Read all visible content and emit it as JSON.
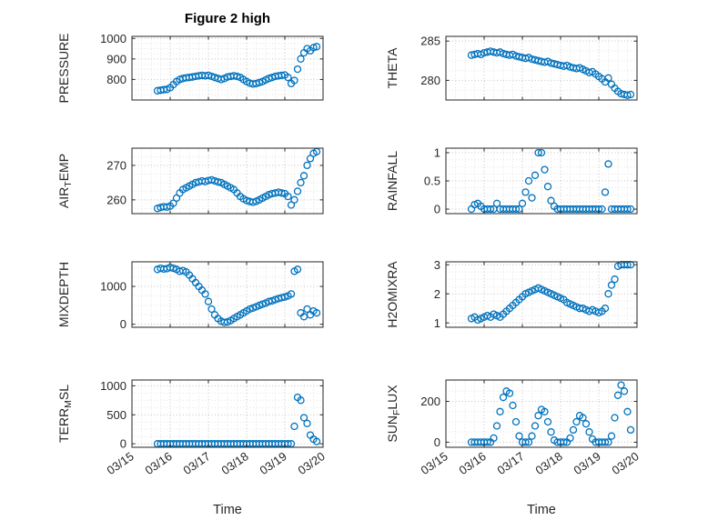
{
  "chart_data": {
    "type": "scatter",
    "title": "Figure 2 high",
    "xlabel": "Time",
    "marker": {
      "shape": "circle-open",
      "color": "#0072BD"
    },
    "axis_color": "#262626",
    "xlim": [
      15,
      20
    ],
    "xticks": [
      15,
      16,
      17,
      18,
      19,
      20
    ],
    "xtick_labels": [
      "03/15",
      "03/16",
      "03/17",
      "03/18",
      "03/19",
      "03/20"
    ],
    "x": [
      15.667,
      15.75,
      15.833,
      15.917,
      16.0,
      16.083,
      16.167,
      16.25,
      16.333,
      16.417,
      16.5,
      16.583,
      16.667,
      16.75,
      16.833,
      16.917,
      17.0,
      17.083,
      17.167,
      17.25,
      17.333,
      17.417,
      17.5,
      17.583,
      17.667,
      17.75,
      17.833,
      17.917,
      18.0,
      18.083,
      18.167,
      18.25,
      18.333,
      18.417,
      18.5,
      18.583,
      18.667,
      18.75,
      18.833,
      18.917,
      19.0,
      19.083,
      19.167,
      19.25,
      19.333,
      19.417,
      19.5,
      19.583,
      19.667,
      19.75,
      19.833
    ],
    "subplots": [
      {
        "name": "PRESSURE",
        "ylabel_parts": [
          {
            "t": "PRESSURE",
            "sub": false
          }
        ],
        "yticks": [
          800,
          900,
          1000
        ],
        "ytick_labels": [
          "800",
          "900",
          "1000"
        ],
        "ylim": [
          700,
          1010
        ],
        "y": [
          745,
          748,
          750,
          752,
          760,
          775,
          790,
          800,
          805,
          808,
          810,
          812,
          815,
          818,
          820,
          818,
          820,
          815,
          810,
          805,
          800,
          805,
          812,
          815,
          818,
          815,
          810,
          800,
          790,
          782,
          778,
          780,
          785,
          790,
          798,
          805,
          810,
          815,
          818,
          820,
          822,
          810,
          780,
          795,
          850,
          900,
          930,
          950,
          940,
          955,
          960
        ]
      },
      {
        "name": "THETA",
        "ylabel_parts": [
          {
            "t": "THETA",
            "sub": false
          }
        ],
        "yticks": [
          280,
          285
        ],
        "ytick_labels": [
          "280",
          "285"
        ],
        "ylim": [
          277.5,
          285.6
        ],
        "y": [
          283.2,
          283.3,
          283.4,
          283.3,
          283.5,
          283.6,
          283.7,
          283.6,
          283.5,
          283.6,
          283.4,
          283.3,
          283.2,
          283.3,
          283.1,
          283.0,
          282.9,
          282.8,
          282.9,
          282.7,
          282.6,
          282.5,
          282.4,
          282.3,
          282.4,
          282.2,
          282.1,
          282.0,
          281.9,
          281.8,
          281.9,
          281.7,
          281.6,
          281.5,
          281.6,
          281.4,
          281.2,
          281.0,
          281.1,
          280.8,
          280.5,
          280.2,
          279.8,
          280.3,
          279.5,
          279.0,
          278.6,
          278.3,
          278.2,
          278.1,
          278.2
        ]
      },
      {
        "name": "AIR_TEMP",
        "ylabel_parts": [
          {
            "t": "AIR",
            "sub": false
          },
          {
            "t": "T",
            "sub": true
          },
          {
            "t": "EMP",
            "sub": false
          }
        ],
        "yticks": [
          260,
          270
        ],
        "ytick_labels": [
          "260",
          "270"
        ],
        "ylim": [
          256,
          275
        ],
        "y": [
          257.5,
          257.8,
          258.0,
          257.9,
          258.2,
          259.0,
          260.5,
          262.0,
          263.0,
          263.5,
          264.0,
          264.5,
          265.0,
          265.2,
          265.5,
          265.3,
          265.6,
          265.8,
          265.5,
          265.2,
          265.0,
          264.5,
          264.0,
          263.5,
          263.0,
          262.0,
          261.0,
          260.3,
          259.8,
          259.5,
          259.3,
          259.6,
          260.0,
          260.5,
          261.0,
          261.5,
          261.8,
          262.0,
          262.2,
          262.0,
          261.8,
          261.0,
          258.5,
          260.0,
          262.5,
          265.0,
          267.0,
          270.0,
          272.0,
          273.5,
          274.0
        ]
      },
      {
        "name": "RAINFALL",
        "ylabel_parts": [
          {
            "t": "RAINFALL",
            "sub": false
          }
        ],
        "yticks": [
          0,
          0.5,
          1
        ],
        "ytick_labels": [
          "0",
          "0.5",
          "1"
        ],
        "ylim": [
          -0.08,
          1.08
        ],
        "y": [
          0,
          0.08,
          0.1,
          0.05,
          0,
          0,
          0,
          0,
          0.1,
          0,
          0,
          0,
          0,
          0,
          0,
          0,
          0.1,
          0.3,
          0.5,
          0.2,
          0.6,
          1,
          1,
          0.7,
          0.4,
          0.15,
          0.05,
          0,
          0,
          0,
          0,
          0,
          0,
          0,
          0,
          0,
          0,
          0,
          0,
          0,
          0,
          0,
          0.3,
          0.8,
          0,
          0,
          0,
          0,
          0,
          0,
          0
        ]
      },
      {
        "name": "MIXDEPTH",
        "ylabel_parts": [
          {
            "t": "MIXDEPTH",
            "sub": false
          }
        ],
        "yticks": [
          0,
          1000
        ],
        "ytick_labels": [
          "0",
          "1000"
        ],
        "ylim": [
          -80,
          1650
        ],
        "y": [
          1450,
          1480,
          1460,
          1470,
          1500,
          1480,
          1450,
          1400,
          1420,
          1380,
          1300,
          1200,
          1100,
          1000,
          900,
          800,
          600,
          400,
          250,
          150,
          80,
          50,
          60,
          100,
          150,
          200,
          250,
          300,
          350,
          400,
          430,
          460,
          500,
          530,
          560,
          600,
          620,
          650,
          680,
          700,
          720,
          750,
          800,
          1400,
          1450,
          300,
          200,
          400,
          250,
          350,
          300
        ]
      },
      {
        "name": "H2OMIXRA",
        "ylabel_parts": [
          {
            "t": "H2OMIXRA",
            "sub": false
          }
        ],
        "yticks": [
          1,
          2,
          3
        ],
        "ytick_labels": [
          "1",
          "2",
          "3"
        ],
        "ylim": [
          0.85,
          3.1
        ],
        "y": [
          1.15,
          1.2,
          1.1,
          1.15,
          1.2,
          1.25,
          1.2,
          1.3,
          1.25,
          1.2,
          1.3,
          1.4,
          1.5,
          1.6,
          1.7,
          1.8,
          1.9,
          2.0,
          2.05,
          2.1,
          2.15,
          2.2,
          2.15,
          2.1,
          2.05,
          2.0,
          1.95,
          1.9,
          1.85,
          1.8,
          1.7,
          1.65,
          1.6,
          1.55,
          1.5,
          1.5,
          1.45,
          1.4,
          1.45,
          1.4,
          1.35,
          1.4,
          1.5,
          2.0,
          2.3,
          2.5,
          2.95,
          3.0,
          3.0,
          3.0,
          3.0
        ]
      },
      {
        "name": "TERR_MSL",
        "ylabel_parts": [
          {
            "t": "TERR",
            "sub": false
          },
          {
            "t": "M",
            "sub": true
          },
          {
            "t": "SL",
            "sub": false
          }
        ],
        "yticks": [
          0,
          500,
          1000
        ],
        "ytick_labels": [
          "0",
          "500",
          "1000"
        ],
        "ylim": [
          -60,
          1100
        ],
        "y": [
          0,
          0,
          0,
          0,
          0,
          0,
          0,
          0,
          0,
          0,
          0,
          0,
          0,
          0,
          0,
          0,
          0,
          0,
          0,
          0,
          0,
          0,
          0,
          0,
          0,
          0,
          0,
          0,
          0,
          0,
          0,
          0,
          0,
          0,
          0,
          0,
          0,
          0,
          0,
          0,
          0,
          0,
          0,
          300,
          800,
          750,
          450,
          350,
          150,
          80,
          40
        ]
      },
      {
        "name": "SUN_FLUX",
        "ylabel_parts": [
          {
            "t": "SUN",
            "sub": false
          },
          {
            "t": "F",
            "sub": true
          },
          {
            "t": "LUX",
            "sub": false
          }
        ],
        "yticks": [
          0,
          200
        ],
        "ytick_labels": [
          "0",
          "200"
        ],
        "ylim": [
          -25,
          305
        ],
        "y": [
          0,
          0,
          0,
          0,
          0,
          0,
          0,
          20,
          80,
          150,
          220,
          250,
          240,
          180,
          100,
          30,
          0,
          0,
          0,
          30,
          80,
          130,
          160,
          150,
          100,
          50,
          10,
          0,
          0,
          0,
          0,
          20,
          60,
          100,
          130,
          120,
          90,
          50,
          15,
          0,
          0,
          0,
          0,
          0,
          30,
          120,
          230,
          280,
          250,
          150,
          60
        ]
      }
    ]
  }
}
